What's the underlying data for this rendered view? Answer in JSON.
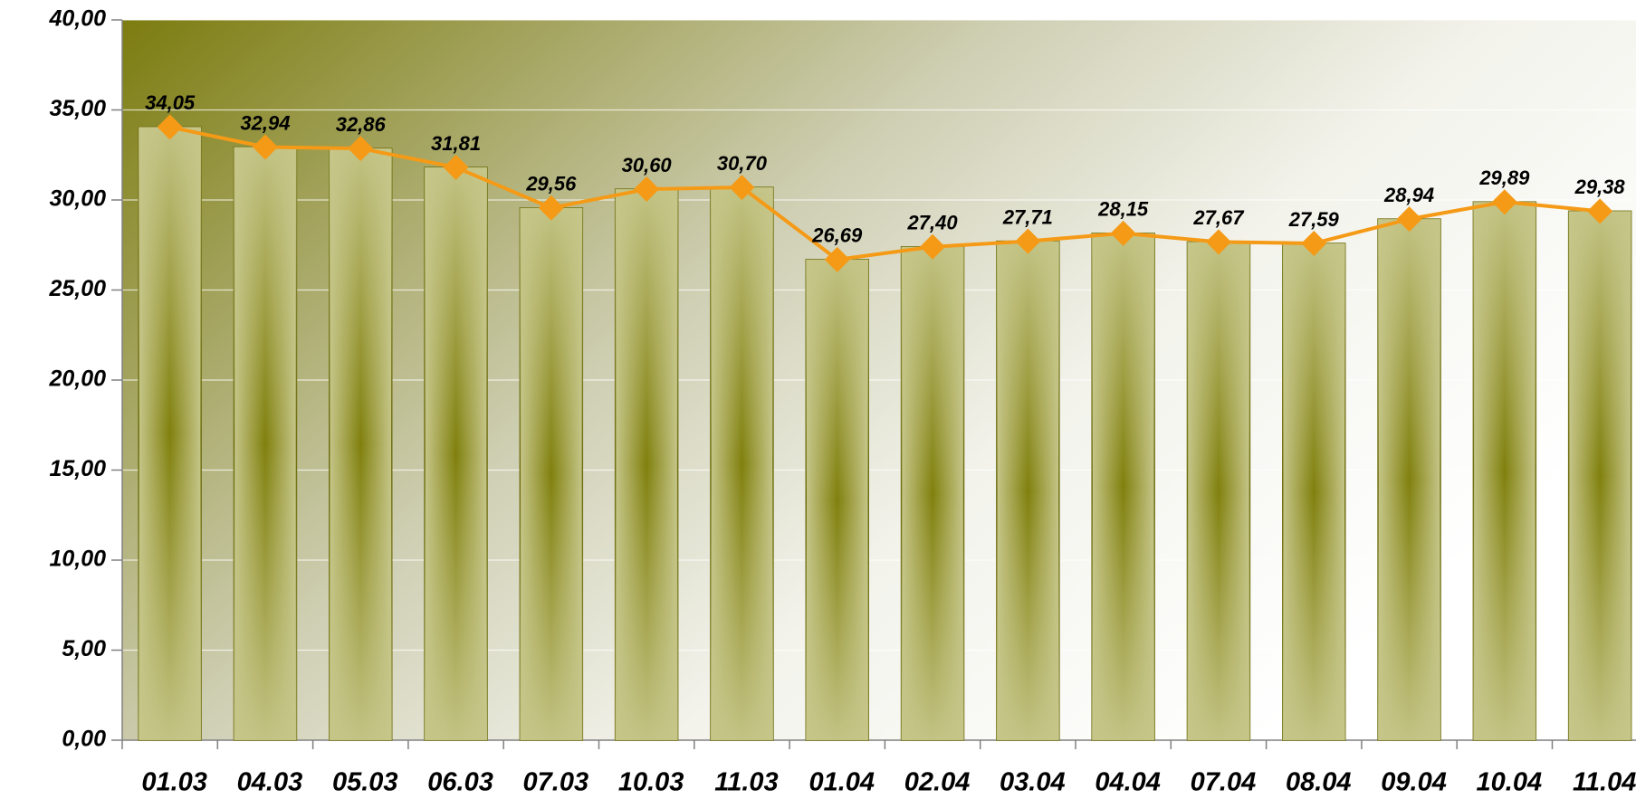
{
  "chart_data": {
    "type": "bar",
    "overlay_type": "line",
    "categories": [
      "01.03",
      "04.03",
      "05.03",
      "06.03",
      "07.03",
      "10.03",
      "11.03",
      "01.04",
      "02.04",
      "03.04",
      "04.04",
      "07.04",
      "08.04",
      "09.04",
      "10.04",
      "11.04"
    ],
    "values": [
      34.05,
      32.94,
      32.86,
      31.81,
      29.56,
      30.6,
      30.7,
      26.69,
      27.4,
      27.71,
      28.15,
      27.67,
      27.59,
      28.94,
      29.89,
      29.38
    ],
    "value_labels": [
      "34,05",
      "32,94",
      "32,86",
      "31,81",
      "29,56",
      "30,60",
      "30,70",
      "26,69",
      "27,40",
      "27,71",
      "28,15",
      "27,67",
      "27,59",
      "28,94",
      "29,89",
      "29,38"
    ],
    "color": "#c6c68a",
    "line_color": "#f59a16",
    "ylim": [
      0,
      40
    ],
    "yticks": [
      {
        "value": 0,
        "label": "0,00"
      },
      {
        "value": 5,
        "label": "5,00"
      },
      {
        "value": 10,
        "label": "10,00"
      },
      {
        "value": 15,
        "label": "15,00"
      },
      {
        "value": 20,
        "label": "20,00"
      },
      {
        "value": 25,
        "label": "25,00"
      },
      {
        "value": 30,
        "label": "30,00"
      },
      {
        "value": 35,
        "label": "35,00"
      },
      {
        "value": 40,
        "label": "40,00"
      }
    ],
    "grid": true
  }
}
